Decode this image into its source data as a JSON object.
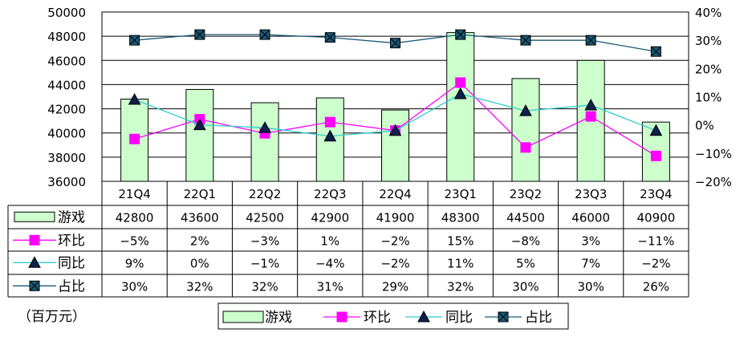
{
  "chart_data": {
    "type": "bar",
    "categories": [
      "21Q4",
      "22Q1",
      "22Q2",
      "22Q3",
      "22Q4",
      "23Q1",
      "23Q2",
      "23Q3",
      "23Q4"
    ],
    "left_axis": {
      "ylim": [
        36000,
        50000
      ],
      "ticks": [
        "36000",
        "38000",
        "40000",
        "42000",
        "44000",
        "46000",
        "48000",
        "50000"
      ]
    },
    "right_axis": {
      "ylim": [
        -20,
        40
      ],
      "ticks": [
        "−20%",
        "−10%",
        "0%",
        "10%",
        "20%",
        "30%",
        "40%"
      ]
    },
    "grid": true,
    "legend_position": "bottom",
    "unit_note": "（百万元）",
    "series": [
      {
        "name": "游戏",
        "type": "bar",
        "axis": "left",
        "color": "#ccffcc",
        "values": [
          42800,
          43600,
          42500,
          42900,
          41900,
          48300,
          44500,
          46000,
          40900
        ],
        "labels": [
          "42800",
          "43600",
          "42500",
          "42900",
          "41900",
          "48300",
          "44500",
          "46000",
          "40900"
        ]
      },
      {
        "name": "环比",
        "type": "line",
        "axis": "right",
        "color": "#ff00ff",
        "marker": "square",
        "values": [
          -5,
          2,
          -3,
          1,
          -2,
          15,
          -8,
          3,
          -11
        ],
        "labels": [
          "−5%",
          "2%",
          "−3%",
          "1%",
          "−2%",
          "15%",
          "−8%",
          "3%",
          "−11%"
        ]
      },
      {
        "name": "同比",
        "type": "line",
        "axis": "right",
        "color": "#33cccc",
        "marker": "triangle",
        "values": [
          9,
          0,
          -1,
          -4,
          -2,
          11,
          5,
          7,
          -2
        ],
        "labels": [
          "9%",
          "0%",
          "−1%",
          "−4%",
          "−2%",
          "11%",
          "5%",
          "7%",
          "−2%"
        ]
      },
      {
        "name": "占比",
        "type": "line",
        "axis": "right",
        "color": "#1a5a78",
        "marker": "square-x",
        "values": [
          30,
          32,
          32,
          31,
          29,
          32,
          30,
          30,
          26
        ],
        "labels": [
          "30%",
          "32%",
          "32%",
          "31%",
          "29%",
          "32%",
          "30%",
          "30%",
          "26%"
        ]
      }
    ]
  }
}
